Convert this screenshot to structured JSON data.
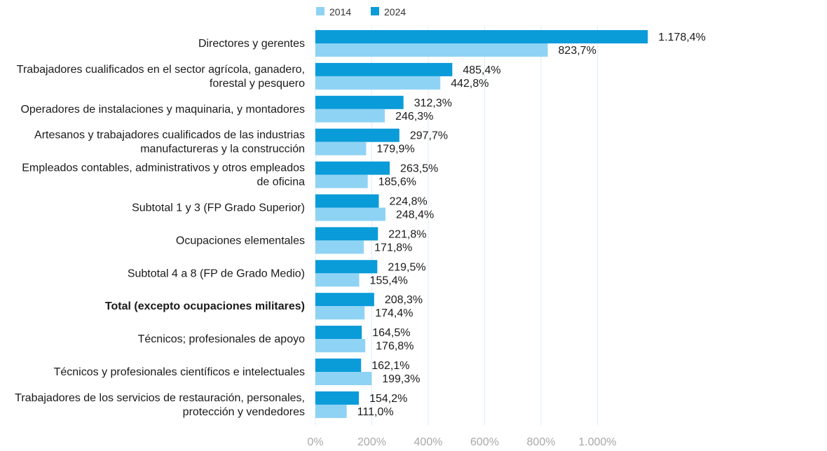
{
  "colors": {
    "s2014": "#8fd3f4",
    "s2024": "#0a9bd9",
    "grid": "#dceef9"
  },
  "chart_data": {
    "type": "bar",
    "orientation": "horizontal",
    "legend": {
      "position": "top-left",
      "labels": [
        "2014",
        "2024"
      ]
    },
    "xlim": [
      0,
      1200
    ],
    "xticks": [
      0,
      200,
      400,
      600,
      800,
      1000
    ],
    "xtick_labels": [
      "0%",
      "200%",
      "400%",
      "600%",
      "800%",
      "1.000%"
    ],
    "categories": [
      {
        "lines": [
          "Directores y gerentes"
        ],
        "bold": false
      },
      {
        "lines": [
          "Trabajadores cualificados en el sector agrícola, ganadero,",
          "forestal y pesquero"
        ],
        "bold": false
      },
      {
        "lines": [
          "Operadores de instalaciones y maquinaria, y montadores"
        ],
        "bold": false
      },
      {
        "lines": [
          "Artesanos y trabajadores cualificados de las industrias",
          "manufactureras y la construcción"
        ],
        "bold": false
      },
      {
        "lines": [
          "Empleados contables, administrativos y otros empleados",
          "de oficina"
        ],
        "bold": false
      },
      {
        "lines": [
          "Subtotal 1 y 3 (FP Grado Superior)"
        ],
        "bold": false
      },
      {
        "lines": [
          "Ocupaciones elementales"
        ],
        "bold": false
      },
      {
        "lines": [
          "Subtotal 4 a 8 (FP de Grado Medio)"
        ],
        "bold": false
      },
      {
        "lines": [
          "Total (excepto ocupaciones militares)"
        ],
        "bold": true
      },
      {
        "lines": [
          "Técnicos; profesionales de apoyo"
        ],
        "bold": false
      },
      {
        "lines": [
          "Técnicos y profesionales científicos e intelectuales"
        ],
        "bold": false
      },
      {
        "lines": [
          "Trabajadores de los servicios de restauración, personales,",
          "protección y vendedores"
        ],
        "bold": false
      }
    ],
    "series": [
      {
        "name": "2024",
        "values": [
          1178.4,
          485.4,
          312.3,
          297.7,
          263.5,
          224.8,
          221.8,
          219.5,
          208.3,
          164.5,
          162.1,
          154.2
        ],
        "labels": [
          "1.178,4%",
          "485,4%",
          "312,3%",
          "297,7%",
          "263,5%",
          "224,8%",
          "221,8%",
          "219,5%",
          "208,3%",
          "164,5%",
          "162,1%",
          "154,2%"
        ]
      },
      {
        "name": "2014",
        "values": [
          823.7,
          442.8,
          246.3,
          179.9,
          185.6,
          248.4,
          171.8,
          155.4,
          174.4,
          176.8,
          199.3,
          111.0
        ],
        "labels": [
          "823,7%",
          "442,8%",
          "246,3%",
          "179,9%",
          "185,6%",
          "248,4%",
          "171,8%",
          "155,4%",
          "174,4%",
          "176,8%",
          "199,3%",
          "111,0%"
        ]
      }
    ]
  }
}
